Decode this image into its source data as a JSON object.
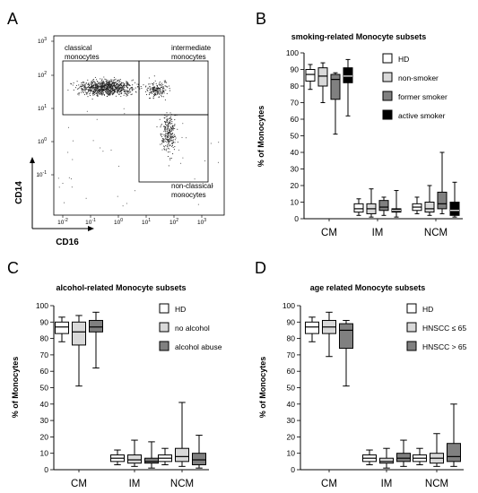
{
  "panels": {
    "A": {
      "label": "A",
      "x_axis_label": "CD16",
      "y_axis_label": "CD14",
      "x_ticks": [
        "10^-2",
        "10^-1",
        "10^0",
        "10^1",
        "10^2",
        "10^3"
      ],
      "y_ticks": [
        "10^3",
        "10^2",
        "10^1",
        "10^0",
        "10^-1"
      ],
      "gates": [
        "classical monocytes",
        "intermediate monocytes",
        "non-classical monocytes"
      ]
    }
  },
  "chart_data": [
    {
      "id": "B",
      "panel_label": "B",
      "type": "boxplot",
      "title": "smoking-related Monocyte subsets",
      "ylabel": "% of Monocytes",
      "ylim": [
        0,
        100
      ],
      "yticks": [
        0,
        10,
        20,
        30,
        40,
        50,
        60,
        70,
        80,
        90,
        100
      ],
      "categories": [
        "CM",
        "IM",
        "NCM"
      ],
      "series": [
        {
          "name": "HD",
          "color": "#ffffff",
          "boxes": [
            [
              78,
              83,
              87,
              90,
              93
            ],
            [
              2,
              4,
              6,
              9,
              12
            ],
            [
              3,
              5,
              7,
              9,
              13
            ]
          ]
        },
        {
          "name": "non-smoker",
          "color": "#d9d9d9",
          "boxes": [
            [
              70,
              80,
              86,
              91,
              94
            ],
            [
              1,
              3,
              6,
              9,
              18
            ],
            [
              2,
              4,
              6,
              10,
              20
            ]
          ]
        },
        {
          "name": "former smoker",
          "color": "#808080",
          "boxes": [
            [
              51,
              72,
              84,
              87,
              88
            ],
            [
              2,
              5,
              7,
              11,
              13
            ],
            [
              3,
              6,
              9,
              16,
              40
            ]
          ]
        },
        {
          "name": "active smoker",
          "color": "#000000",
          "boxes": [
            [
              62,
              82,
              86,
              91,
              96
            ],
            [
              1,
              4,
              5,
              6,
              17
            ],
            [
              1,
              2,
              5,
              10,
              22
            ]
          ]
        }
      ]
    },
    {
      "id": "C",
      "panel_label": "C",
      "type": "boxplot",
      "title": "alcohol-related Monocyte subsets",
      "ylabel": "% of Monocytes",
      "ylim": [
        0,
        100
      ],
      "yticks": [
        0,
        10,
        20,
        30,
        40,
        50,
        60,
        70,
        80,
        90,
        100
      ],
      "categories": [
        "CM",
        "IM",
        "NCM"
      ],
      "series": [
        {
          "name": "HD",
          "color": "#ffffff",
          "boxes": [
            [
              78,
              83,
              87,
              90,
              93
            ],
            [
              3,
              5,
              7,
              9,
              12
            ],
            [
              3,
              5,
              7,
              9,
              13
            ]
          ]
        },
        {
          "name": "no alcohol",
          "color": "#d9d9d9",
          "boxes": [
            [
              51,
              76,
              84,
              90,
              94
            ],
            [
              2,
              4,
              6,
              9,
              18
            ],
            [
              2,
              5,
              8,
              13,
              41
            ]
          ]
        },
        {
          "name": "alcohol abuse",
          "color": "#808080",
          "boxes": [
            [
              62,
              84,
              87,
              91,
              96
            ],
            [
              1,
              4,
              5,
              7,
              17
            ],
            [
              1,
              3,
              6,
              10,
              21
            ]
          ]
        }
      ]
    },
    {
      "id": "D",
      "panel_label": "D",
      "type": "boxplot",
      "title": "age related Monocyte subsets",
      "ylabel": "% of Monocytes",
      "ylim": [
        0,
        100
      ],
      "yticks": [
        0,
        10,
        20,
        30,
        40,
        50,
        60,
        70,
        80,
        90,
        100
      ],
      "categories": [
        "CM",
        "IM",
        "NCM"
      ],
      "series": [
        {
          "name": "HD",
          "color": "#ffffff",
          "boxes": [
            [
              78,
              83,
              87,
              90,
              93
            ],
            [
              3,
              5,
              7,
              9,
              12
            ],
            [
              3,
              5,
              7,
              9,
              13
            ]
          ]
        },
        {
          "name": "HNSCC ≤ 65",
          "color": "#d9d9d9",
          "boxes": [
            [
              69,
              83,
              87,
              91,
              96
            ],
            [
              1,
              4,
              5,
              7,
              13
            ],
            [
              2,
              4,
              7,
              10,
              22
            ]
          ]
        },
        {
          "name": "HNSCC > 65",
          "color": "#808080",
          "boxes": [
            [
              51,
              74,
              85,
              89,
              91
            ],
            [
              2,
              5,
              7,
              10,
              18
            ],
            [
              2,
              5,
              8,
              16,
              40
            ]
          ]
        }
      ]
    }
  ]
}
